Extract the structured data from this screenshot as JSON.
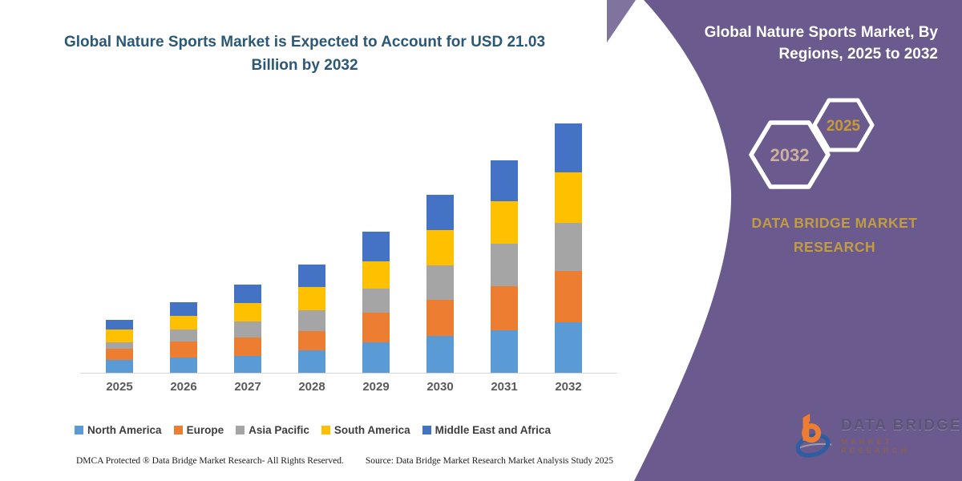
{
  "chart_data": {
    "type": "bar",
    "stacked": true,
    "title": "Global Nature Sports Market is Expected to Account for USD 21.03 Billion by 2032",
    "unit": "USD Billion",
    "categories": [
      "2025",
      "2026",
      "2027",
      "2028",
      "2029",
      "2030",
      "2031",
      "2032"
    ],
    "series": [
      {
        "name": "North America",
        "color": "#5B9BD5",
        "values": [
          1.08,
          1.32,
          1.4,
          1.9,
          2.55,
          3.1,
          3.6,
          4.24
        ]
      },
      {
        "name": "Europe",
        "color": "#ED7D31",
        "values": [
          0.95,
          1.33,
          1.6,
          1.62,
          2.5,
          3.06,
          3.7,
          4.35
        ]
      },
      {
        "name": "Asia Pacific",
        "color": "#A5A5A5",
        "values": [
          0.57,
          1.02,
          1.33,
          1.73,
          2.08,
          2.9,
          3.58,
          4.06
        ]
      },
      {
        "name": "South America",
        "color": "#FFC000",
        "values": [
          1.07,
          1.12,
          1.55,
          2.0,
          2.3,
          2.98,
          3.6,
          4.24
        ]
      },
      {
        "name": "Middle East and Africa",
        "color": "#4472C4",
        "values": [
          0.83,
          1.15,
          1.56,
          1.86,
          2.48,
          2.96,
          3.48,
          4.14
        ]
      }
    ],
    "totals": [
      4.5,
      5.94,
      7.44,
      9.11,
      11.91,
      15.0,
      17.96,
      21.03
    ],
    "ylim": [
      0,
      21.03
    ],
    "grid": false,
    "legend_position": "bottom"
  },
  "sidebar": {
    "title": "Global Nature Sports Market, By Regions, 2025 to 2032",
    "hexagons": [
      {
        "label": "2032"
      },
      {
        "label": "2025"
      }
    ],
    "brand": "DATA BRIDGE MARKET RESEARCH",
    "logo": {
      "line1": "DATA BRIDGE",
      "line2": "MARKET RESEARCH"
    }
  },
  "footer": {
    "dmca": "DMCA Protected ® Data Bridge Market Research-  All Rights Reserved.",
    "source": "Source: Data Bridge Market Research  Market Analysis Study 2025"
  },
  "colors": {
    "panel": "#6a5a8d",
    "title_text": "#2c5877",
    "axis_text": "#595959",
    "gold": "#c09c42",
    "hex_2032_text": "#cbb0a0",
    "hex_2025_text": "#c79a33",
    "logo_orange": "#ED7D31",
    "logo_blue": "#2e5da0"
  }
}
